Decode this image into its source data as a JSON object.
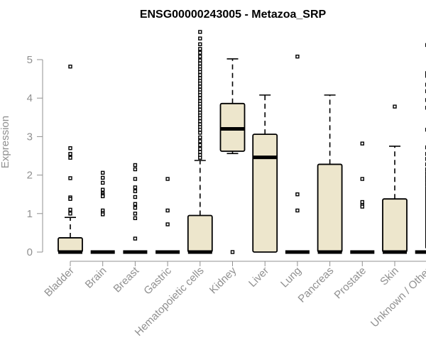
{
  "chart_data": {
    "type": "boxplot",
    "title": "ENSG00000243005 - Metazoa_SRP",
    "xlabel": "",
    "ylabel": "Expression",
    "ylim": [
      0,
      5.75
    ],
    "yticks": [
      0,
      1,
      2,
      3,
      4,
      5
    ],
    "grid": false,
    "colors": {
      "box_fill": "#ede6cc",
      "stroke": "#000000",
      "axis": "#909090"
    },
    "categories": [
      "Bladder",
      "Brain",
      "Breast",
      "Gastric",
      "Hematopoietic cells",
      "Kidney",
      "Liver",
      "Lung",
      "Pancreas",
      "Prostate",
      "Skin",
      "Unknown / Other"
    ],
    "boxes": [
      {
        "q1": 0,
        "median": 0,
        "q3": 0.37,
        "whisker_low": 0,
        "whisker_high": 0.9,
        "outliers": [
          4.82,
          2.7,
          2.55,
          2.45,
          1.92,
          1.42,
          1.38,
          1.1,
          1.0
        ]
      },
      {
        "q1": 0,
        "median": 0,
        "q3": 0,
        "whisker_low": 0,
        "whisker_high": 0,
        "outliers": [
          2.06,
          1.93,
          1.8,
          1.62,
          1.52,
          1.48,
          1.45,
          1.08,
          1.02,
          0.98
        ]
      },
      {
        "q1": 0,
        "median": 0,
        "q3": 0,
        "whisker_low": 0,
        "whisker_high": 0,
        "outliers": [
          2.26,
          2.15,
          1.9,
          1.68,
          1.58,
          1.43,
          1.25,
          1.15,
          1.0,
          0.88,
          0.35
        ]
      },
      {
        "q1": 0,
        "median": 0,
        "q3": 0,
        "whisker_low": 0,
        "whisker_high": 0,
        "outliers": [
          1.9,
          1.08,
          0.72
        ]
      },
      {
        "q1": 0,
        "median": 0,
        "q3": 0.95,
        "whisker_low": 0,
        "whisker_high": 2.38,
        "outliers": [
          5.72,
          5.55,
          5.4,
          5.28,
          5.18,
          5.08,
          4.98,
          4.9,
          4.82,
          4.75,
          4.68,
          4.6,
          4.52,
          4.45,
          4.38,
          4.3,
          4.22,
          4.15,
          4.08,
          4.0,
          3.92,
          3.85,
          3.78,
          3.7,
          3.62,
          3.55,
          3.48,
          3.4,
          3.32,
          3.25,
          3.18,
          3.1,
          2.98,
          2.88,
          2.78,
          2.68,
          2.6,
          2.52,
          2.45
        ]
      },
      {
        "q1": 2.62,
        "median": 3.2,
        "q3": 3.86,
        "whisker_low": 2.56,
        "whisker_high": 5.02,
        "outliers": [
          0
        ]
      },
      {
        "q1": 0,
        "median": 2.46,
        "q3": 3.06,
        "whisker_low": 0,
        "whisker_high": 4.08,
        "outliers": []
      },
      {
        "q1": 0,
        "median": 0,
        "q3": 0,
        "whisker_low": 0,
        "whisker_high": 0,
        "outliers": [
          5.08,
          1.5,
          1.08
        ]
      },
      {
        "q1": 0,
        "median": 0,
        "q3": 2.28,
        "whisker_low": 0,
        "whisker_high": 4.08,
        "outliers": []
      },
      {
        "q1": 0,
        "median": 0,
        "q3": 0,
        "whisker_low": 0,
        "whisker_high": 0,
        "outliers": [
          2.82,
          1.9,
          1.3,
          1.22,
          1.18
        ]
      },
      {
        "q1": 0,
        "median": 0,
        "q3": 1.38,
        "whisker_low": 0,
        "whisker_high": 2.75,
        "outliers": [
          3.78
        ]
      },
      {
        "q1": 0,
        "median": 0,
        "q3": 0,
        "whisker_low": 0,
        "whisker_high": 0,
        "outliers": [
          5.38,
          4.65,
          4.58,
          4.35,
          4.18,
          3.95,
          3.75,
          3.18,
          2.72,
          2.55,
          2.42,
          2.28,
          2.15,
          2.05,
          1.95,
          1.85,
          1.75,
          1.65,
          1.58,
          1.5,
          1.42,
          1.35,
          1.28,
          1.2,
          1.12,
          1.05,
          0.98,
          0.9,
          0.82,
          0.75,
          0.68,
          0.6,
          0.52,
          0.45,
          0.38,
          0.3,
          0.22,
          0.15
        ]
      }
    ]
  }
}
